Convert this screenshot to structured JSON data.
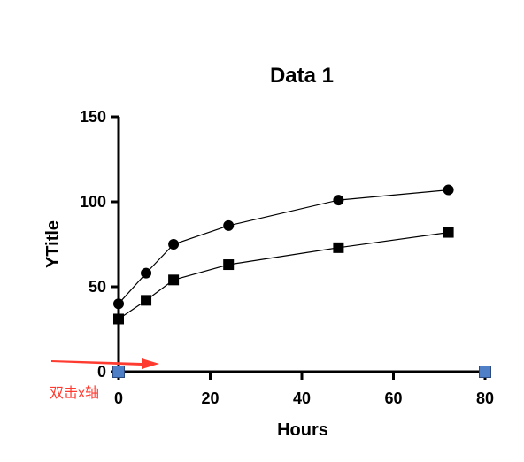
{
  "chart_data": {
    "type": "line",
    "title": "Data 1",
    "xlabel": "Hours",
    "ylabel": "YTitle",
    "xlim": [
      0,
      80
    ],
    "ylim": [
      0,
      150
    ],
    "xticks": [
      0,
      20,
      40,
      60,
      80
    ],
    "yticks": [
      0,
      50,
      100,
      150
    ],
    "grid": false,
    "legend": "none",
    "series": [
      {
        "marker": "circle",
        "color": "#000000",
        "x": [
          0,
          6,
          12,
          24,
          48,
          72
        ],
        "y": [
          40,
          58,
          75,
          86,
          101,
          107
        ]
      },
      {
        "marker": "square",
        "color": "#000000",
        "x": [
          0,
          6,
          12,
          24,
          48,
          72
        ],
        "y": [
          31,
          42,
          54,
          63,
          73,
          82
        ]
      }
    ],
    "axis_handles": {
      "color": "#4f7fc7",
      "x_values": [
        0,
        80
      ]
    },
    "annotation": {
      "text": "双击x轴",
      "color": "#ff3b30"
    }
  }
}
